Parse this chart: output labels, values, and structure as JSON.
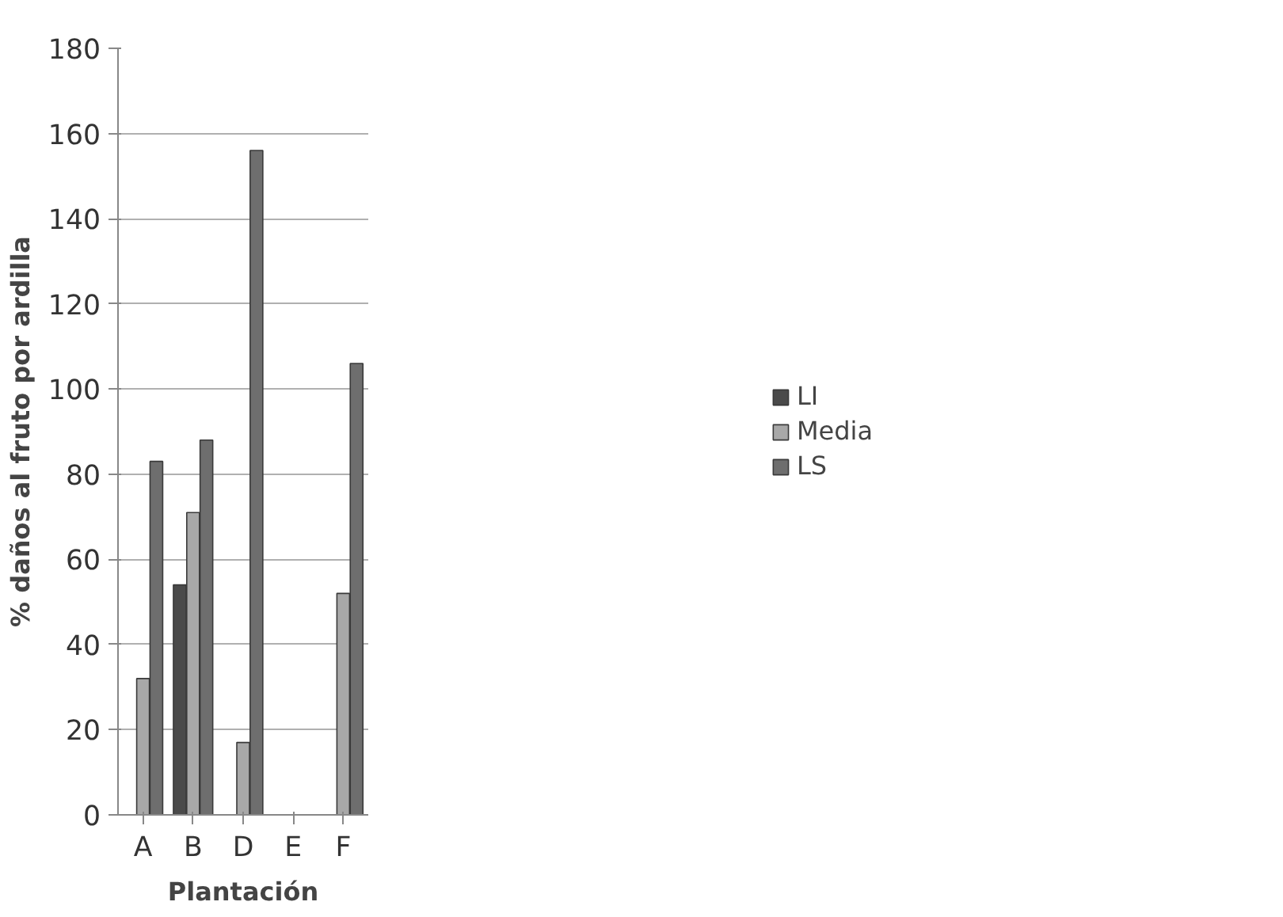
{
  "chart_data": {
    "type": "bar",
    "xlabel": "Plantación",
    "ylabel": "% daños al fruto por ardilla",
    "categories": [
      "A",
      "B",
      "D",
      "E",
      "F"
    ],
    "series": [
      {
        "name": "LI",
        "color": "#4a4a4a",
        "values": [
          null,
          54,
          null,
          null,
          null
        ]
      },
      {
        "name": "Media",
        "color": "#a8a8a8",
        "values": [
          32,
          71,
          17,
          null,
          52
        ]
      },
      {
        "name": "LS",
        "color": "#6e6e6e",
        "values": [
          83,
          88,
          156,
          null,
          106
        ]
      }
    ],
    "ylim": [
      0,
      180
    ],
    "yticks": [
      0,
      20,
      40,
      60,
      80,
      100,
      120,
      140,
      160,
      180
    ],
    "grid": "y",
    "legend": "right"
  }
}
